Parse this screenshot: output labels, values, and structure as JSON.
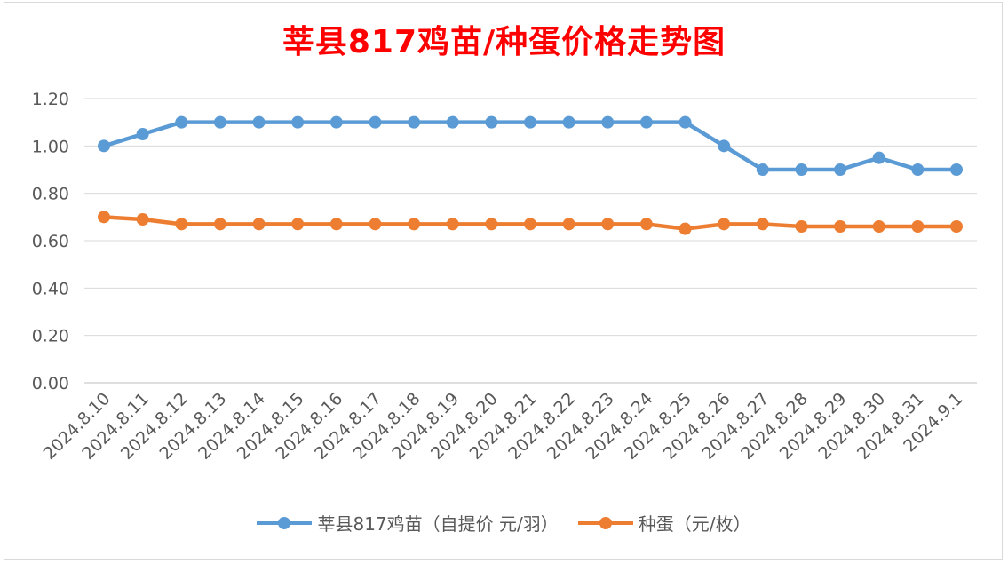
{
  "chart_data": {
    "type": "line",
    "title": "莘县817鸡苗/种蛋价格走势图",
    "xlabel": "",
    "ylabel": "",
    "categories": [
      "2024.8.10",
      "2024.8.11",
      "2024.8.12",
      "2024.8.13",
      "2024.8.14",
      "2024.8.15",
      "2024.8.16",
      "2024.8.17",
      "2024.8.18",
      "2024.8.19",
      "2024.8.20",
      "2024.8.21",
      "2024.8.22",
      "2024.8.23",
      "2024.8.24",
      "2024.8.25",
      "2024.8.26",
      "2024.8.27",
      "2024.8.28",
      "2024.8.29",
      "2024.8.30",
      "2024.8.31",
      "2024.9.1"
    ],
    "ylim": [
      0,
      1.2
    ],
    "yticks": [
      "0.00",
      "0.20",
      "0.40",
      "0.60",
      "0.80",
      "1.00",
      "1.20"
    ],
    "grid": true,
    "legend_position": "bottom",
    "series": [
      {
        "name": "莘县817鸡苗（自提价 元/羽）",
        "color": "#5b9bd5",
        "values": [
          1.0,
          1.05,
          1.1,
          1.1,
          1.1,
          1.1,
          1.1,
          1.1,
          1.1,
          1.1,
          1.1,
          1.1,
          1.1,
          1.1,
          1.1,
          1.1,
          1.0,
          0.9,
          0.9,
          0.9,
          0.95,
          0.9,
          0.9
        ]
      },
      {
        "name": "种蛋（元/枚）",
        "color": "#ed7d31",
        "values": [
          0.7,
          0.69,
          0.67,
          0.67,
          0.67,
          0.67,
          0.67,
          0.67,
          0.67,
          0.67,
          0.67,
          0.67,
          0.67,
          0.67,
          0.67,
          0.65,
          0.67,
          0.67,
          0.66,
          0.66,
          0.66,
          0.66,
          0.66
        ]
      }
    ]
  }
}
